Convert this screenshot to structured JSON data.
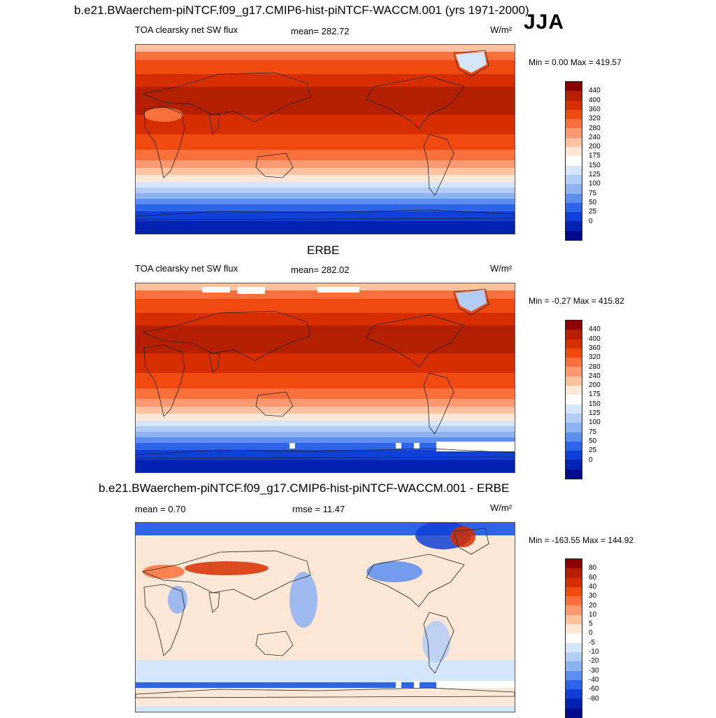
{
  "header": {
    "main_title": "b.e21.BWaerchem-piNTCF.f09_g17.CMIP6-hist-piNTCF-WACCM.001 (yrs 1971-2000)",
    "season": "JJA"
  },
  "panels": [
    {
      "id": "model",
      "title": "",
      "left_label": "TOA clearsky net SW flux",
      "center_label": "mean= 282.72",
      "unit": "W/m²",
      "minmax": "Min =   0.00 Max = 419.57",
      "colorbar": {
        "levels": [
          "440",
          "400",
          "360",
          "320",
          "280",
          "240",
          "200",
          "175",
          "150",
          "125",
          "100",
          "75",
          "50",
          "25",
          "0"
        ],
        "colors": [
          "#8b0000",
          "#b31f00",
          "#d62e00",
          "#f04a10",
          "#f9703c",
          "#fb9a70",
          "#fdc3a1",
          "#fde7d6",
          "#ffffff",
          "#d6e6fa",
          "#b3cdf7",
          "#8db2f2",
          "#5c8ef0",
          "#2e64e8",
          "#0f3fd6",
          "#0022b0",
          "#000a8c"
        ]
      }
    },
    {
      "id": "obs",
      "title": "ERBE",
      "left_label": "TOA clearsky net SW flux",
      "center_label": "mean= 282.02",
      "unit": "W/m²",
      "minmax": "Min =  -0.27 Max = 415.82",
      "colorbar": {
        "levels": [
          "440",
          "400",
          "360",
          "320",
          "280",
          "240",
          "200",
          "175",
          "150",
          "125",
          "100",
          "75",
          "50",
          "25",
          "0"
        ],
        "colors": [
          "#8b0000",
          "#b31f00",
          "#d62e00",
          "#f04a10",
          "#f9703c",
          "#fb9a70",
          "#fdc3a1",
          "#fde7d6",
          "#ffffff",
          "#d6e6fa",
          "#b3cdf7",
          "#8db2f2",
          "#5c8ef0",
          "#2e64e8",
          "#0f3fd6",
          "#0022b0",
          "#000a8c"
        ]
      }
    },
    {
      "id": "diff",
      "title": "b.e21.BWaerchem-piNTCF.f09_g17.CMIP6-hist-piNTCF-WACCM.001 - ERBE",
      "left_label": "mean =   0.70",
      "center_label": "rmse =  11.47",
      "unit": "W/m²",
      "minmax": "Min = -163.55 Max = 144.92",
      "colorbar": {
        "levels": [
          "80",
          "60",
          "40",
          "30",
          "20",
          "10",
          "5",
          "0",
          "-5",
          "-10",
          "-20",
          "-30",
          "-40",
          "-60",
          "-80"
        ],
        "colors": [
          "#8b0000",
          "#b31f00",
          "#d62e00",
          "#f04a10",
          "#f9703c",
          "#fb9a70",
          "#fdc3a1",
          "#fde7d6",
          "#ffffff",
          "#d6e6fa",
          "#b3cdf7",
          "#8db2f2",
          "#5c8ef0",
          "#2e64e8",
          "#0f3fd6",
          "#0022b0",
          "#000a8c"
        ]
      }
    }
  ]
}
